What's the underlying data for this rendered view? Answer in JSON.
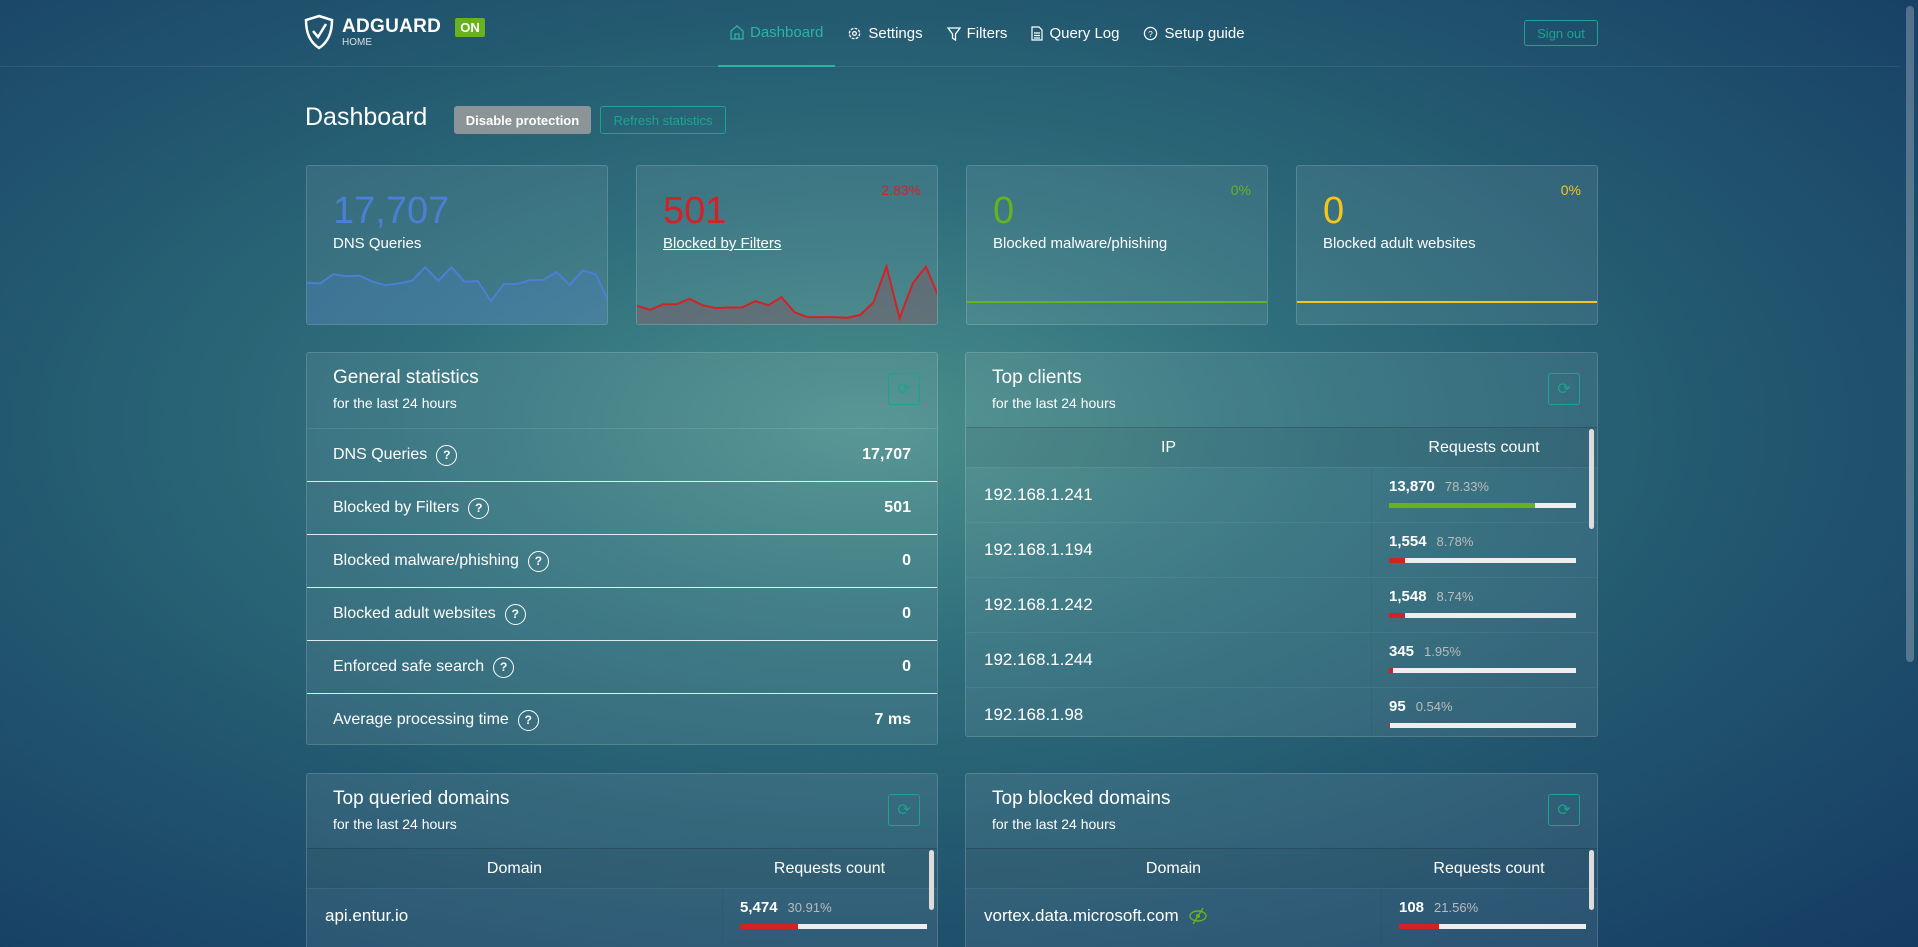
{
  "header": {
    "logo": {
      "brand": "ADGUARD",
      "sub": "HOME"
    },
    "status_badge": "ON",
    "nav": [
      {
        "label": "Dashboard",
        "icon": "home-icon",
        "active": true
      },
      {
        "label": "Settings",
        "icon": "gear-icon"
      },
      {
        "label": "Filters",
        "icon": "filter-icon"
      },
      {
        "label": "Query Log",
        "icon": "document-icon"
      },
      {
        "label": "Setup guide",
        "icon": "help-circle-icon"
      }
    ],
    "sign_out": "Sign out"
  },
  "page": {
    "title": "Dashboard",
    "disable_protection": "Disable protection",
    "refresh_statistics": "Refresh statistics"
  },
  "colors": {
    "accent": "#1aa58f",
    "blue": "#4a7fd4",
    "red": "#d32226",
    "green": "#67b21e",
    "yellow": "#f5c518"
  },
  "stat_cards": [
    {
      "value": "17,707",
      "label": "DNS Queries",
      "percent": "",
      "color": "#4a7fd4",
      "sparkline": [
        122,
        120,
        148,
        142,
        144,
        125,
        114,
        120,
        128,
        170,
        128,
        170,
        125,
        127,
        65,
        118,
        118,
        130,
        130,
        155,
        115,
        160,
        148,
        60
      ]
    },
    {
      "value": "501",
      "label": "Blocked by Filters",
      "percent": "2.83%",
      "color": "#d32226",
      "sparkline": [
        50,
        38,
        55,
        55,
        72,
        52,
        43,
        45,
        45,
        65,
        52,
        77,
        30,
        15,
        15,
        15,
        13,
        22,
        60,
        172,
        12,
        120,
        172,
        75
      ]
    },
    {
      "value": "0",
      "label": "Blocked malware/phishing",
      "percent": "0%",
      "color": "#67b21e",
      "sparkline": [
        0,
        0,
        0,
        0,
        0,
        0,
        0,
        0,
        0,
        0
      ]
    },
    {
      "value": "0",
      "label": "Blocked adult websites",
      "percent": "0%",
      "color": "#f5c518",
      "sparkline": [
        0,
        0,
        0,
        0,
        0,
        0,
        0,
        0,
        0,
        0
      ]
    }
  ],
  "general_statistics": {
    "title": "General statistics",
    "subtitle": "for the last 24 hours",
    "rows": [
      {
        "label": "DNS Queries",
        "value": "17,707"
      },
      {
        "label": "Blocked by Filters",
        "value": "501"
      },
      {
        "label": "Blocked malware/phishing",
        "value": "0"
      },
      {
        "label": "Blocked adult websites",
        "value": "0"
      },
      {
        "label": "Enforced safe search",
        "value": "0"
      },
      {
        "label": "Average processing time",
        "value": "7 ms"
      }
    ]
  },
  "top_clients": {
    "title": "Top clients",
    "subtitle": "for the last 24 hours",
    "columns": [
      "IP",
      "Requests count"
    ],
    "rows": [
      {
        "ip": "192.168.1.241",
        "count": "13,870",
        "percent": "78.33%",
        "fill": 78.33,
        "color": "#67b21e"
      },
      {
        "ip": "192.168.1.194",
        "count": "1,554",
        "percent": "8.78%",
        "fill": 8.78,
        "color": "#d32226"
      },
      {
        "ip": "192.168.1.242",
        "count": "1,548",
        "percent": "8.74%",
        "fill": 8.74,
        "color": "#d32226"
      },
      {
        "ip": "192.168.1.244",
        "count": "345",
        "percent": "1.95%",
        "fill": 1.95,
        "color": "#d32226"
      },
      {
        "ip": "192.168.1.98",
        "count": "95",
        "percent": "0.54%",
        "fill": 0.54,
        "color": "#d32226"
      }
    ]
  },
  "top_queried": {
    "title": "Top queried domains",
    "subtitle": "for the last 24 hours",
    "columns": [
      "Domain",
      "Requests count"
    ],
    "rows": [
      {
        "domain": "api.entur.io",
        "count": "5,474",
        "percent": "30.91%",
        "fill": 30.91,
        "color": "#d32226"
      }
    ]
  },
  "top_blocked": {
    "title": "Top blocked domains",
    "subtitle": "for the last 24 hours",
    "columns": [
      "Domain",
      "Requests count"
    ],
    "rows": [
      {
        "domain": "vortex.data.microsoft.com",
        "count": "108",
        "percent": "21.56%",
        "fill": 21.56,
        "color": "#d32226",
        "icon": "eye-slash-icon"
      }
    ]
  }
}
